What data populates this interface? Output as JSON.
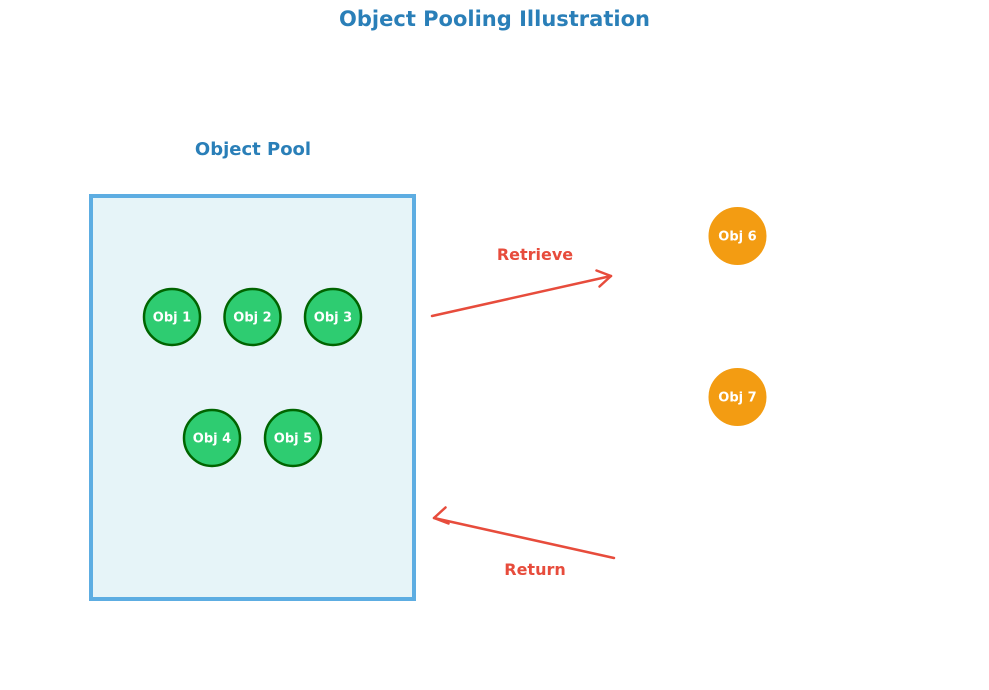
{
  "title": "Object Pooling Illustration",
  "pool": {
    "label": "Object Pool",
    "objects": [
      "Obj 1",
      "Obj 2",
      "Obj 3",
      "Obj 4",
      "Obj 5"
    ]
  },
  "in_use": {
    "objects": [
      "Obj 6",
      "Obj 7"
    ]
  },
  "arrows": {
    "retrieve_label": "Retrieve",
    "return_label": "Return"
  },
  "colors": {
    "title": "#2a7fb8",
    "pool_fill": "#e6f4f8",
    "pool_border": "#5dade2",
    "pool_object_fill": "#2ecc71",
    "pool_object_stroke": "#006400",
    "in_use_object_fill": "#f39c12",
    "in_use_object_stroke": "#f39c12",
    "arrow": "#e74c3c"
  }
}
